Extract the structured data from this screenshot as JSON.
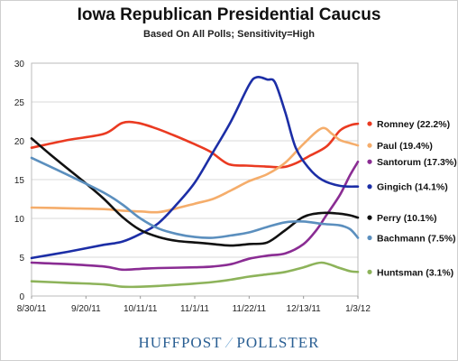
{
  "chart_data": {
    "type": "line",
    "title": "Iowa Republican Presidential Caucus",
    "subtitle": "Based On All Polls; Sensitivity=High",
    "xlabel": "",
    "ylabel": "",
    "ylim": [
      0,
      30
    ],
    "yticks": [
      0,
      5,
      10,
      15,
      20,
      25,
      30
    ],
    "grid": "horizontal",
    "xlim": [
      "2011-08-30",
      "2012-01-03"
    ],
    "xticks": [
      "2011-08-30",
      "2011-09-20",
      "2011-10-11",
      "2011-11-01",
      "2011-11-22",
      "2011-12-13",
      "2012-01-03"
    ],
    "xtick_labels": [
      "8/30/11",
      "9/20/11",
      "10/11/11",
      "11/1/11",
      "11/22/11",
      "12/13/11",
      "1/3/12"
    ],
    "legend_placement": "right",
    "series": [
      {
        "name": "Romney (22.2%)",
        "color": "#ea3a21",
        "points": [
          [
            "2011-08-30",
            19.1
          ],
          [
            "2011-09-13",
            20.1
          ],
          [
            "2011-09-27",
            20.9
          ],
          [
            "2011-10-04",
            22.3
          ],
          [
            "2011-10-10",
            22.3
          ],
          [
            "2011-10-17",
            21.6
          ],
          [
            "2011-10-24",
            20.7
          ],
          [
            "2011-10-31",
            19.7
          ],
          [
            "2011-11-07",
            18.6
          ],
          [
            "2011-11-14",
            17.0
          ],
          [
            "2011-11-21",
            16.8
          ],
          [
            "2011-11-28",
            16.7
          ],
          [
            "2011-12-05",
            16.6
          ],
          [
            "2011-12-10",
            17.1
          ],
          [
            "2011-12-15",
            18.0
          ],
          [
            "2011-12-22",
            19.3
          ],
          [
            "2011-12-27",
            21.3
          ],
          [
            "2011-12-31",
            22.0
          ],
          [
            "2012-01-03",
            22.2
          ]
        ]
      },
      {
        "name": "Paul (19.4%)",
        "color": "#f5ad6b",
        "points": [
          [
            "2011-08-30",
            11.4
          ],
          [
            "2011-09-13",
            11.3
          ],
          [
            "2011-09-27",
            11.2
          ],
          [
            "2011-10-04",
            11.0
          ],
          [
            "2011-10-11",
            10.9
          ],
          [
            "2011-10-18",
            10.8
          ],
          [
            "2011-10-25",
            11.3
          ],
          [
            "2011-11-01",
            11.9
          ],
          [
            "2011-11-08",
            12.5
          ],
          [
            "2011-11-15",
            13.6
          ],
          [
            "2011-11-22",
            14.8
          ],
          [
            "2011-11-29",
            15.7
          ],
          [
            "2011-12-06",
            17.2
          ],
          [
            "2011-12-13",
            19.6
          ],
          [
            "2011-12-20",
            21.6
          ],
          [
            "2011-12-24",
            20.9
          ],
          [
            "2011-12-27",
            20.1
          ],
          [
            "2011-12-31",
            19.7
          ],
          [
            "2012-01-03",
            19.4
          ]
        ]
      },
      {
        "name": "Santorum (17.3%)",
        "color": "#8a2c93",
        "points": [
          [
            "2011-08-30",
            4.3
          ],
          [
            "2011-09-13",
            4.1
          ],
          [
            "2011-09-27",
            3.8
          ],
          [
            "2011-10-04",
            3.4
          ],
          [
            "2011-10-11",
            3.5
          ],
          [
            "2011-10-18",
            3.6
          ],
          [
            "2011-11-01",
            3.7
          ],
          [
            "2011-11-08",
            3.8
          ],
          [
            "2011-11-15",
            4.1
          ],
          [
            "2011-11-22",
            4.8
          ],
          [
            "2011-11-29",
            5.2
          ],
          [
            "2011-12-06",
            5.5
          ],
          [
            "2011-12-13",
            6.7
          ],
          [
            "2011-12-18",
            8.5
          ],
          [
            "2011-12-22",
            10.5
          ],
          [
            "2011-12-27",
            13.0
          ],
          [
            "2011-12-31",
            15.6
          ],
          [
            "2012-01-03",
            17.3
          ]
        ]
      },
      {
        "name": "Gingich (14.1%)",
        "color": "#1c2ea6",
        "points": [
          [
            "2011-08-30",
            4.9
          ],
          [
            "2011-09-13",
            5.7
          ],
          [
            "2011-09-27",
            6.6
          ],
          [
            "2011-10-04",
            7.0
          ],
          [
            "2011-10-11",
            8.0
          ],
          [
            "2011-10-18",
            9.4
          ],
          [
            "2011-10-25",
            11.8
          ],
          [
            "2011-11-01",
            14.6
          ],
          [
            "2011-11-08",
            18.5
          ],
          [
            "2011-11-15",
            22.5
          ],
          [
            "2011-11-22",
            27.2
          ],
          [
            "2011-11-25",
            28.2
          ],
          [
            "2011-11-29",
            27.9
          ],
          [
            "2011-12-02",
            27.5
          ],
          [
            "2011-12-06",
            23.6
          ],
          [
            "2011-12-10",
            19.1
          ],
          [
            "2011-12-15",
            16.5
          ],
          [
            "2011-12-20",
            15.0
          ],
          [
            "2011-12-27",
            14.2
          ],
          [
            "2012-01-03",
            14.1
          ]
        ]
      },
      {
        "name": "Perry (10.1%)",
        "color": "#111111",
        "points": [
          [
            "2011-08-30",
            20.3
          ],
          [
            "2011-09-06",
            18.3
          ],
          [
            "2011-09-13",
            16.4
          ],
          [
            "2011-09-20",
            14.5
          ],
          [
            "2011-09-27",
            12.5
          ],
          [
            "2011-10-04",
            10.2
          ],
          [
            "2011-10-11",
            8.5
          ],
          [
            "2011-10-18",
            7.6
          ],
          [
            "2011-10-25",
            7.1
          ],
          [
            "2011-11-01",
            6.9
          ],
          [
            "2011-11-08",
            6.7
          ],
          [
            "2011-11-15",
            6.5
          ],
          [
            "2011-11-22",
            6.7
          ],
          [
            "2011-11-29",
            6.9
          ],
          [
            "2011-12-06",
            8.5
          ],
          [
            "2011-12-13",
            10.2
          ],
          [
            "2011-12-20",
            10.7
          ],
          [
            "2011-12-27",
            10.6
          ],
          [
            "2011-12-31",
            10.4
          ],
          [
            "2012-01-03",
            10.1
          ]
        ]
      },
      {
        "name": "Bachmann (7.5%)",
        "color": "#5b8fbe",
        "points": [
          [
            "2011-08-30",
            17.8
          ],
          [
            "2011-09-13",
            15.6
          ],
          [
            "2011-09-27",
            13.3
          ],
          [
            "2011-10-04",
            11.8
          ],
          [
            "2011-10-11",
            10.0
          ],
          [
            "2011-10-18",
            8.7
          ],
          [
            "2011-10-25",
            8.0
          ],
          [
            "2011-11-01",
            7.6
          ],
          [
            "2011-11-08",
            7.5
          ],
          [
            "2011-11-15",
            7.8
          ],
          [
            "2011-11-22",
            8.2
          ],
          [
            "2011-11-29",
            8.9
          ],
          [
            "2011-12-06",
            9.5
          ],
          [
            "2011-12-13",
            9.6
          ],
          [
            "2011-12-20",
            9.3
          ],
          [
            "2011-12-27",
            9.1
          ],
          [
            "2011-12-31",
            8.6
          ],
          [
            "2012-01-03",
            7.5
          ]
        ]
      },
      {
        "name": "Huntsman (3.1%)",
        "color": "#8db35a",
        "points": [
          [
            "2011-08-30",
            1.9
          ],
          [
            "2011-09-13",
            1.7
          ],
          [
            "2011-09-27",
            1.5
          ],
          [
            "2011-10-04",
            1.2
          ],
          [
            "2011-10-11",
            1.2
          ],
          [
            "2011-10-18",
            1.3
          ],
          [
            "2011-11-01",
            1.6
          ],
          [
            "2011-11-08",
            1.8
          ],
          [
            "2011-11-15",
            2.1
          ],
          [
            "2011-11-22",
            2.5
          ],
          [
            "2011-11-29",
            2.8
          ],
          [
            "2011-12-06",
            3.1
          ],
          [
            "2011-12-13",
            3.7
          ],
          [
            "2011-12-20",
            4.3
          ],
          [
            "2011-12-27",
            3.6
          ],
          [
            "2011-12-31",
            3.2
          ],
          [
            "2012-01-03",
            3.1
          ]
        ]
      }
    ]
  },
  "branding": {
    "left": "HUFFPOST",
    "right": "POLLSTER"
  }
}
